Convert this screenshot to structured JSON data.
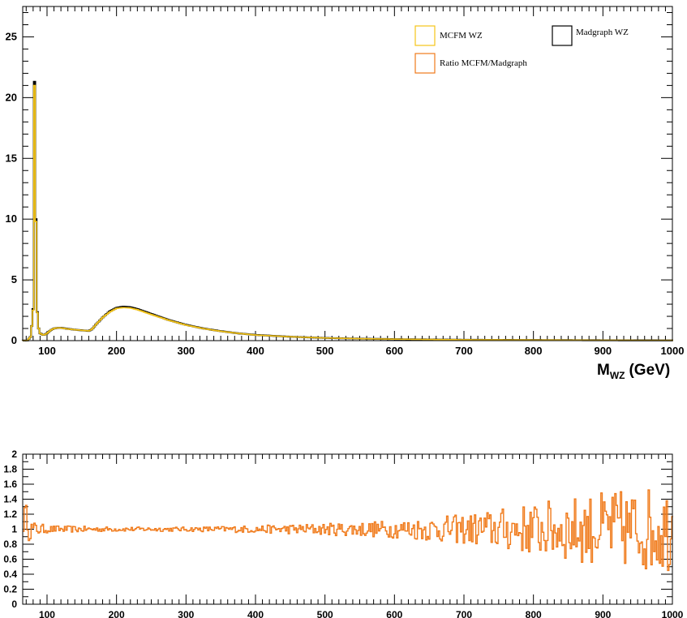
{
  "chart_data": [
    {
      "type": "line",
      "style": "step-histogram",
      "title": "",
      "xlabel_main": "M",
      "xlabel_sub": "WZ",
      "xlabel_unit": "(GeV)",
      "ylabel": "",
      "xlim": [
        65,
        1000
      ],
      "ylim": [
        0,
        27.5
      ],
      "x_ticks": [
        100,
        200,
        300,
        400,
        500,
        600,
        700,
        800,
        900,
        1000
      ],
      "y_ticks": [
        0,
        5,
        10,
        15,
        20,
        25
      ],
      "legend_placement": "top-right",
      "legend": [
        {
          "name": "MCFM WZ",
          "color": "#f5c518"
        },
        {
          "name": "Madgraph WZ",
          "color": "#000000"
        },
        {
          "name": "Ratio MCFM/Madgraph",
          "color": "#f07a1a"
        }
      ],
      "series": [
        {
          "name": "Madgraph WZ",
          "color": "#000000",
          "points": [
            [
              65,
              0
            ],
            [
              72,
              0.02
            ],
            [
              76,
              0.3
            ],
            [
              78,
              1.2
            ],
            [
              80,
              2.6
            ],
            [
              81,
              6.5
            ],
            [
              82,
              21.3
            ],
            [
              83,
              21.3
            ],
            [
              84,
              10
            ],
            [
              85,
              3.5
            ],
            [
              87,
              1.2
            ],
            [
              90,
              0.6
            ],
            [
              95,
              0.45
            ],
            [
              100,
              0.6
            ],
            [
              105,
              0.85
            ],
            [
              110,
              1.0
            ],
            [
              115,
              1.05
            ],
            [
              120,
              1.05
            ],
            [
              130,
              0.97
            ],
            [
              140,
              0.9
            ],
            [
              150,
              0.85
            ],
            [
              160,
              0.8
            ],
            [
              165,
              0.95
            ],
            [
              170,
              1.3
            ],
            [
              180,
              1.9
            ],
            [
              190,
              2.4
            ],
            [
              200,
              2.7
            ],
            [
              210,
              2.8
            ],
            [
              220,
              2.75
            ],
            [
              230,
              2.6
            ],
            [
              250,
              2.2
            ],
            [
              275,
              1.7
            ],
            [
              300,
              1.3
            ],
            [
              325,
              1.0
            ],
            [
              350,
              0.78
            ],
            [
              375,
              0.6
            ],
            [
              400,
              0.47
            ],
            [
              450,
              0.32
            ],
            [
              500,
              0.22
            ],
            [
              550,
              0.16
            ],
            [
              600,
              0.12
            ],
            [
              700,
              0.07
            ],
            [
              800,
              0.05
            ],
            [
              900,
              0.03
            ],
            [
              1000,
              0.02
            ]
          ]
        },
        {
          "name": "MCFM WZ",
          "color": "#f5c518",
          "points": [
            [
              65,
              0
            ],
            [
              72,
              0.02
            ],
            [
              76,
              0.3
            ],
            [
              78,
              1.2
            ],
            [
              80,
              2.5
            ],
            [
              81,
              6.3
            ],
            [
              82,
              21.0
            ],
            [
              83,
              21.0
            ],
            [
              84,
              9.8
            ],
            [
              85,
              3.4
            ],
            [
              87,
              1.2
            ],
            [
              90,
              0.6
            ],
            [
              95,
              0.45
            ],
            [
              100,
              0.6
            ],
            [
              105,
              0.85
            ],
            [
              110,
              1.0
            ],
            [
              115,
              1.05
            ],
            [
              120,
              1.04
            ],
            [
              130,
              0.96
            ],
            [
              140,
              0.9
            ],
            [
              150,
              0.85
            ],
            [
              160,
              0.8
            ],
            [
              165,
              0.95
            ],
            [
              170,
              1.3
            ],
            [
              180,
              1.9
            ],
            [
              190,
              2.35
            ],
            [
              200,
              2.65
            ],
            [
              210,
              2.72
            ],
            [
              220,
              2.68
            ],
            [
              230,
              2.55
            ],
            [
              250,
              2.15
            ],
            [
              275,
              1.68
            ],
            [
              300,
              1.28
            ],
            [
              325,
              0.99
            ],
            [
              350,
              0.77
            ],
            [
              375,
              0.6
            ],
            [
              400,
              0.46
            ],
            [
              450,
              0.32
            ],
            [
              500,
              0.22
            ],
            [
              550,
              0.16
            ],
            [
              600,
              0.12
            ],
            [
              700,
              0.07
            ],
            [
              800,
              0.05
            ],
            [
              900,
              0.03
            ],
            [
              1000,
              0.02
            ]
          ]
        }
      ]
    },
    {
      "type": "line",
      "style": "step-histogram",
      "title": "",
      "xlabel": "",
      "ylabel": "",
      "xlim": [
        65,
        1000
      ],
      "ylim": [
        0,
        2
      ],
      "x_ticks": [
        100,
        200,
        300,
        400,
        500,
        600,
        700,
        800,
        900,
        1000
      ],
      "y_ticks": [
        0,
        0.2,
        0.4,
        0.6,
        0.8,
        1,
        1.2,
        1.4,
        1.6,
        1.8,
        2
      ],
      "series": [
        {
          "name": "Ratio MCFM/Madgraph",
          "color": "#f07a1a",
          "bin_width": 2,
          "ratio_center": 1.0,
          "noise_envelope": [
            [
              65,
              0.22
            ],
            [
              80,
              0.1
            ],
            [
              100,
              0.05
            ],
            [
              200,
              0.03
            ],
            [
              300,
              0.03
            ],
            [
              400,
              0.05
            ],
            [
              500,
              0.08
            ],
            [
              600,
              0.12
            ],
            [
              700,
              0.2
            ],
            [
              800,
              0.35
            ],
            [
              900,
              0.5
            ],
            [
              1000,
              0.6
            ]
          ]
        }
      ]
    }
  ]
}
